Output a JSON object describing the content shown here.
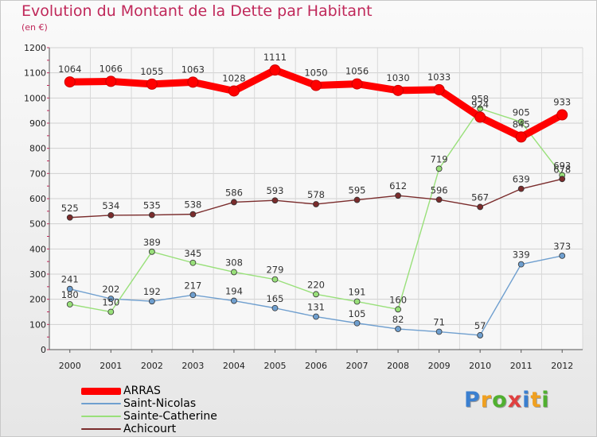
{
  "chart_data": {
    "type": "line",
    "title": "Evolution du Montant de la Dette par Habitant",
    "subtitle": "(en €)",
    "xlabel": "",
    "ylabel": "",
    "ylim": [
      0,
      1200
    ],
    "yticks": [
      0,
      100,
      200,
      300,
      400,
      500,
      600,
      700,
      800,
      900,
      1000,
      1100,
      1200
    ],
    "categories": [
      "2000",
      "2001",
      "2002",
      "2003",
      "2004",
      "2005",
      "2006",
      "2007",
      "2008",
      "2009",
      "2010",
      "2011",
      "2012"
    ],
    "grid": true,
    "legend_position": "bottom-left",
    "series": [
      {
        "name": "ARRAS",
        "color": "#ff0000",
        "values": [
          1064,
          1066,
          1055,
          1063,
          1028,
          1111,
          1050,
          1056,
          1030,
          1033,
          924,
          845,
          933
        ]
      },
      {
        "name": "Saint-Nicolas",
        "color": "#6f9fcf",
        "values": [
          241,
          202,
          192,
          217,
          194,
          165,
          131,
          105,
          82,
          71,
          57,
          339,
          373
        ]
      },
      {
        "name": "Sainte-Catherine",
        "color": "#99e07a",
        "values": [
          180,
          150,
          389,
          345,
          308,
          279,
          220,
          191,
          160,
          719,
          958,
          905,
          693
        ]
      },
      {
        "name": "Achicourt",
        "color": "#7a2c2c",
        "values": [
          525,
          534,
          535,
          538,
          586,
          593,
          578,
          595,
          612,
          596,
          567,
          639,
          678
        ]
      }
    ]
  },
  "legend": {
    "items": [
      {
        "name": "ARRAS",
        "color": "#ff0000"
      },
      {
        "name": "Saint-Nicolas",
        "color": "#6f9fcf"
      },
      {
        "name": "Sainte-Catherine",
        "color": "#99e07a"
      },
      {
        "name": "Achicourt",
        "color": "#7a2c2c"
      }
    ]
  },
  "brand": {
    "letters": [
      "P",
      "r",
      "o",
      "x",
      "i",
      "t",
      "i"
    ],
    "colors": [
      "#3a7fd0",
      "#f0a020",
      "#50b030",
      "#e04040",
      "#3a7fd0",
      "#f0a020",
      "#50b030"
    ]
  }
}
